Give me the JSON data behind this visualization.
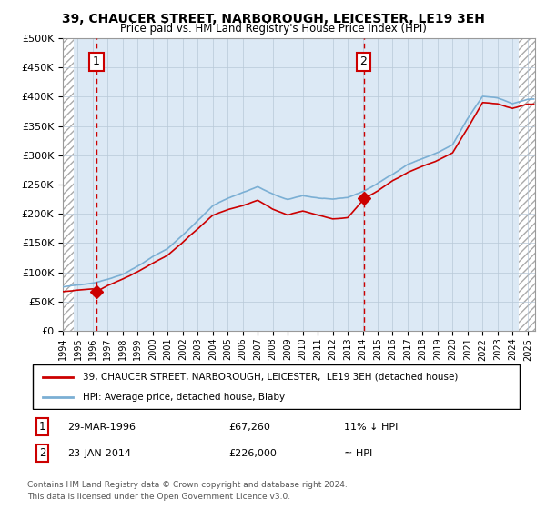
{
  "title": "39, CHAUCER STREET, NARBOROUGH, LEICESTER, LE19 3EH",
  "subtitle": "Price paid vs. HM Land Registry's House Price Index (HPI)",
  "sale1_year": 1996.24,
  "sale1_price": 67260,
  "sale1_label": "1",
  "sale2_year": 2014.06,
  "sale2_price": 226000,
  "sale2_label": "2",
  "legend_line1": "39, CHAUCER STREET, NARBOROUGH, LEICESTER,  LE19 3EH (detached house)",
  "legend_line2": "HPI: Average price, detached house, Blaby",
  "footnote": "Contains HM Land Registry data © Crown copyright and database right 2024.\nThis data is licensed under the Open Government Licence v3.0.",
  "hpi_color": "#7bafd4",
  "price_color": "#cc0000",
  "bg_color": "#dce9f5",
  "ylim": [
    0,
    500000
  ],
  "xlim_start": 1994.0,
  "xlim_end": 2025.5
}
